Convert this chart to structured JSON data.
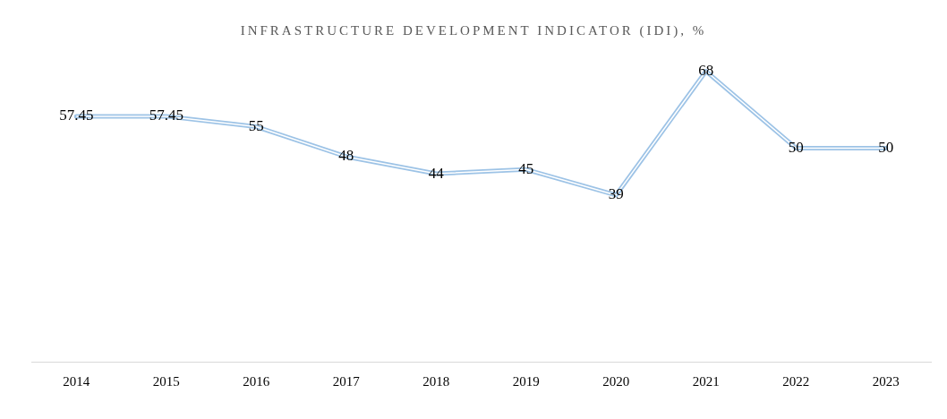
{
  "chart_data": {
    "type": "line",
    "title": "INFRASTRUCTURE DEVELOPMENT INDICATOR (IDI), %",
    "categories": [
      "2014",
      "2015",
      "2016",
      "2017",
      "2018",
      "2019",
      "2020",
      "2021",
      "2022",
      "2023"
    ],
    "series": [
      {
        "color": "#9dc3e6",
        "values": [
          57.45,
          57.45,
          55,
          48,
          44,
          45,
          39,
          68,
          50,
          50
        ]
      }
    ],
    "data_labels": true,
    "grid": false,
    "legend": false,
    "marker": "none",
    "line_style": "solid",
    "tick_labels": "x"
  }
}
